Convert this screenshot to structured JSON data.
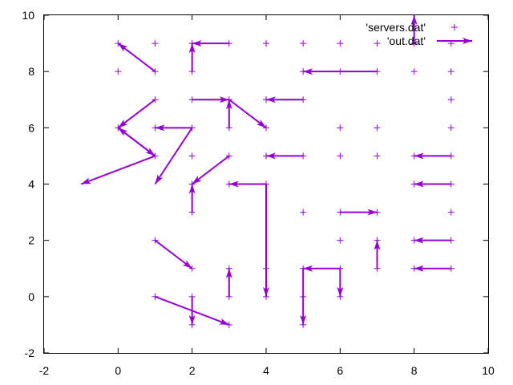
{
  "chart_data": {
    "type": "scatter",
    "title": "",
    "xlabel": "",
    "ylabel": "",
    "xlim": [
      -2,
      10
    ],
    "ylim": [
      -2,
      10
    ],
    "grid": false,
    "legend_position": "top-right",
    "xticks": [
      "-2",
      "0",
      "2",
      "4",
      "6",
      "8",
      "10"
    ],
    "yticks": [
      "-2",
      "0",
      "2",
      "4",
      "6",
      "8",
      "10"
    ],
    "colors": {
      "series": "#9400d3",
      "axis": "#000000"
    },
    "series": [
      {
        "name": "'servers.dat'",
        "style": "points",
        "points": [
          [
            0,
            9
          ],
          [
            1,
            9
          ],
          [
            2,
            9
          ],
          [
            3,
            9
          ],
          [
            4,
            9
          ],
          [
            5,
            9
          ],
          [
            6,
            9
          ],
          [
            7,
            9
          ],
          [
            8,
            9
          ],
          [
            9,
            9
          ],
          [
            0,
            8
          ],
          [
            1,
            8
          ],
          [
            2,
            8
          ],
          [
            5,
            8
          ],
          [
            6,
            8
          ],
          [
            7,
            8
          ],
          [
            8,
            8
          ],
          [
            9,
            8
          ],
          [
            1,
            7
          ],
          [
            2,
            7
          ],
          [
            3,
            7
          ],
          [
            4,
            7
          ],
          [
            5,
            7
          ],
          [
            9,
            7
          ],
          [
            0,
            6
          ],
          [
            1,
            6
          ],
          [
            2,
            6
          ],
          [
            3,
            6
          ],
          [
            4,
            6
          ],
          [
            6,
            6
          ],
          [
            7,
            6
          ],
          [
            9,
            6
          ],
          [
            1,
            5
          ],
          [
            2,
            5
          ],
          [
            3,
            5
          ],
          [
            4,
            5
          ],
          [
            5,
            5
          ],
          [
            6,
            5
          ],
          [
            7,
            5
          ],
          [
            8,
            5
          ],
          [
            9,
            5
          ],
          [
            2,
            4
          ],
          [
            3,
            4
          ],
          [
            4,
            4
          ],
          [
            8,
            4
          ],
          [
            9,
            4
          ],
          [
            2,
            3
          ],
          [
            5,
            3
          ],
          [
            6,
            3
          ],
          [
            7,
            3
          ],
          [
            9,
            3
          ],
          [
            1,
            2
          ],
          [
            6,
            2
          ],
          [
            7,
            2
          ],
          [
            8,
            2
          ],
          [
            9,
            2
          ],
          [
            2,
            1
          ],
          [
            3,
            1
          ],
          [
            4,
            1
          ],
          [
            5,
            1
          ],
          [
            6,
            1
          ],
          [
            7,
            1
          ],
          [
            8,
            1
          ],
          [
            9,
            1
          ],
          [
            1,
            0
          ],
          [
            2,
            0
          ],
          [
            3,
            0
          ],
          [
            4,
            0
          ],
          [
            5,
            0
          ],
          [
            6,
            0
          ],
          [
            2,
            -1
          ],
          [
            3,
            -1
          ],
          [
            5,
            -1
          ]
        ]
      },
      {
        "name": "'out.dat'",
        "style": "vectors",
        "vectors": [
          [
            1,
            8,
            0,
            9
          ],
          [
            3,
            9,
            2,
            9
          ],
          [
            2,
            8,
            2,
            9
          ],
          [
            7,
            8,
            5,
            8
          ],
          [
            1,
            7,
            0,
            6
          ],
          [
            2,
            6,
            1,
            6
          ],
          [
            2,
            7,
            3,
            7
          ],
          [
            3,
            6,
            3,
            7
          ],
          [
            3,
            7,
            4,
            6
          ],
          [
            5,
            7,
            4,
            7
          ],
          [
            1,
            5,
            0,
            6
          ],
          [
            1,
            5,
            -1,
            4
          ],
          [
            2,
            6,
            1,
            4
          ],
          [
            3,
            5,
            2,
            4
          ],
          [
            5,
            5,
            4,
            5
          ],
          [
            9,
            5,
            8,
            5
          ],
          [
            4,
            4,
            3,
            4
          ],
          [
            4,
            4,
            4,
            0
          ],
          [
            2,
            3,
            2,
            4
          ],
          [
            6,
            3,
            7,
            3
          ],
          [
            7,
            1,
            7,
            2
          ],
          [
            9,
            4,
            8,
            4
          ],
          [
            9,
            2,
            8,
            2
          ],
          [
            9,
            1,
            8,
            1
          ],
          [
            1,
            2,
            2,
            1
          ],
          [
            3,
            0,
            3,
            1
          ],
          [
            6,
            1,
            5,
            1
          ],
          [
            6,
            1,
            6,
            0
          ],
          [
            5,
            1,
            5,
            -1
          ],
          [
            2,
            0,
            2,
            -1
          ],
          [
            1,
            0,
            3,
            -1
          ],
          [
            8,
            9,
            8,
            10
          ],
          [
            0,
            6,
            1,
            5
          ]
        ]
      }
    ]
  }
}
